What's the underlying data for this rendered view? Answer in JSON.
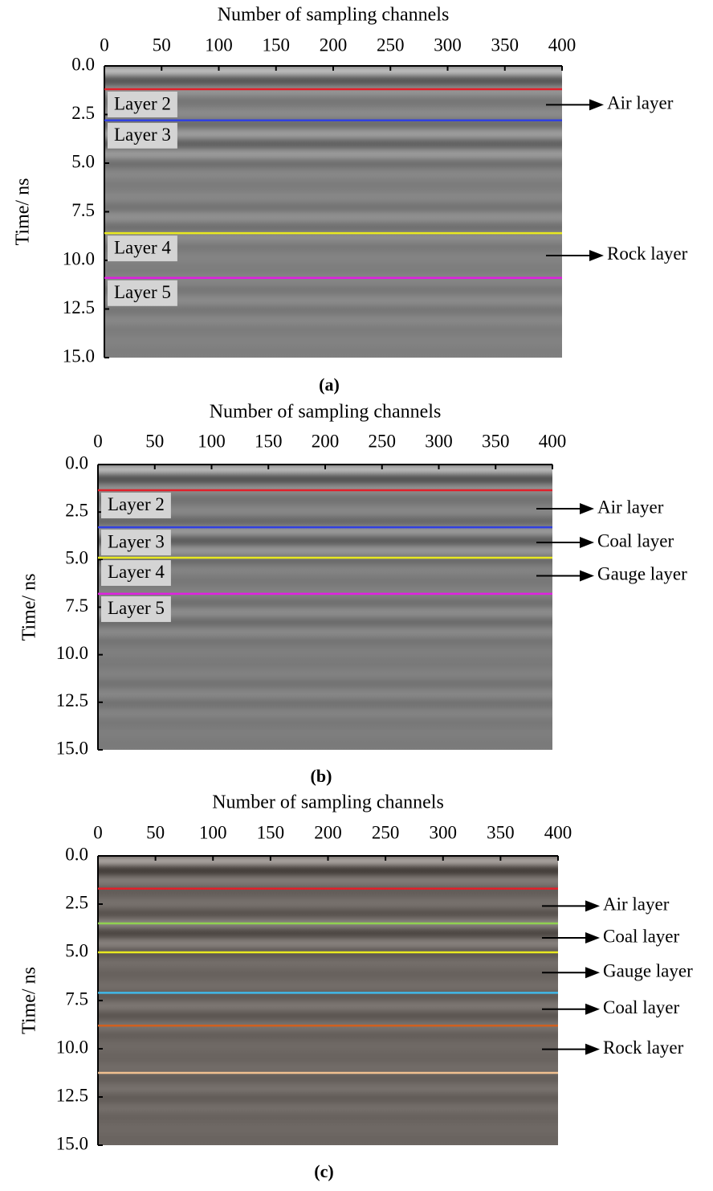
{
  "chart_data": [
    {
      "type": "radargram",
      "title": "Number of sampling channels",
      "ylabel": "Time/ ns",
      "caption": "(a)",
      "xlim": [
        0,
        400
      ],
      "xticks": [
        0,
        50,
        100,
        150,
        200,
        250,
        300,
        350,
        400
      ],
      "ylim": [
        0,
        15
      ],
      "yticks": [
        {
          "value": 0,
          "label": "0.0"
        },
        2.5,
        {
          "value": 5,
          "label": "5.0"
        },
        7.5,
        {
          "value": 10,
          "label": "10.0"
        },
        12.5,
        {
          "value": 15,
          "label": "15.0"
        }
      ],
      "background": "#808080",
      "horizons": {
        "values": [
          1.2,
          2.8,
          8.6,
          10.9
        ],
        "colors": [
          "#e0202a",
          "#3040e0",
          "#e8e820",
          "#e020e0"
        ],
        "labels": [
          "Layer 2",
          "Layer 3",
          "Layer 4",
          "Layer 5"
        ]
      },
      "intervals": [
        "Air layer",
        null,
        "Rock layer"
      ]
    },
    {
      "type": "radargram",
      "title": "Number of sampling channels",
      "ylabel": "Time/ ns",
      "caption": "(b)",
      "xlim": [
        0,
        400
      ],
      "xticks": [
        0,
        50,
        100,
        150,
        200,
        250,
        300,
        350,
        400
      ],
      "ylim": [
        0,
        15
      ],
      "yticks": [
        {
          "value": 0,
          "label": "0.0"
        },
        2.5,
        {
          "value": 5,
          "label": "5.0"
        },
        7.5,
        {
          "value": 10,
          "label": "10.0"
        },
        12.5,
        {
          "value": 15,
          "label": "15.0"
        }
      ],
      "background": "#7c7c7c",
      "horizons": {
        "values": [
          1.35,
          3.3,
          4.9,
          6.8
        ],
        "colors": [
          "#e0202a",
          "#3040e0",
          "#e8e820",
          "#e020e0"
        ],
        "labels": [
          "Layer 2",
          "Layer 3",
          "Layer 4",
          "Layer 5"
        ]
      },
      "intervals": [
        "Air layer",
        "Coal layer",
        "Gauge layer"
      ]
    },
    {
      "type": "radargram",
      "title": "Number of sampling channels",
      "ylabel": "Time/ ns",
      "caption": "(c)",
      "xlim": [
        0,
        400
      ],
      "xticks": [
        0,
        50,
        100,
        150,
        200,
        250,
        300,
        350,
        400
      ],
      "ylim": [
        0,
        15
      ],
      "yticks": [
        {
          "value": 0,
          "label": "0.0"
        },
        2.5,
        {
          "value": 5,
          "label": "5.0"
        },
        7.5,
        {
          "value": 10,
          "label": "10.0"
        },
        12.5,
        {
          "value": 15,
          "label": "15.0"
        }
      ],
      "background": "#6c6662",
      "horizons": {
        "values": [
          1.7,
          3.5,
          5.0,
          7.1,
          8.8,
          11.25
        ],
        "colors": [
          "#e0202a",
          "#90d050",
          "#e8e820",
          "#40b8e8",
          "#d06020",
          "#f0c090"
        ]
      },
      "intervals": [
        "Air layer",
        "Coal layer",
        "Gauge layer",
        "Coal layer",
        "Rock layer"
      ]
    }
  ]
}
